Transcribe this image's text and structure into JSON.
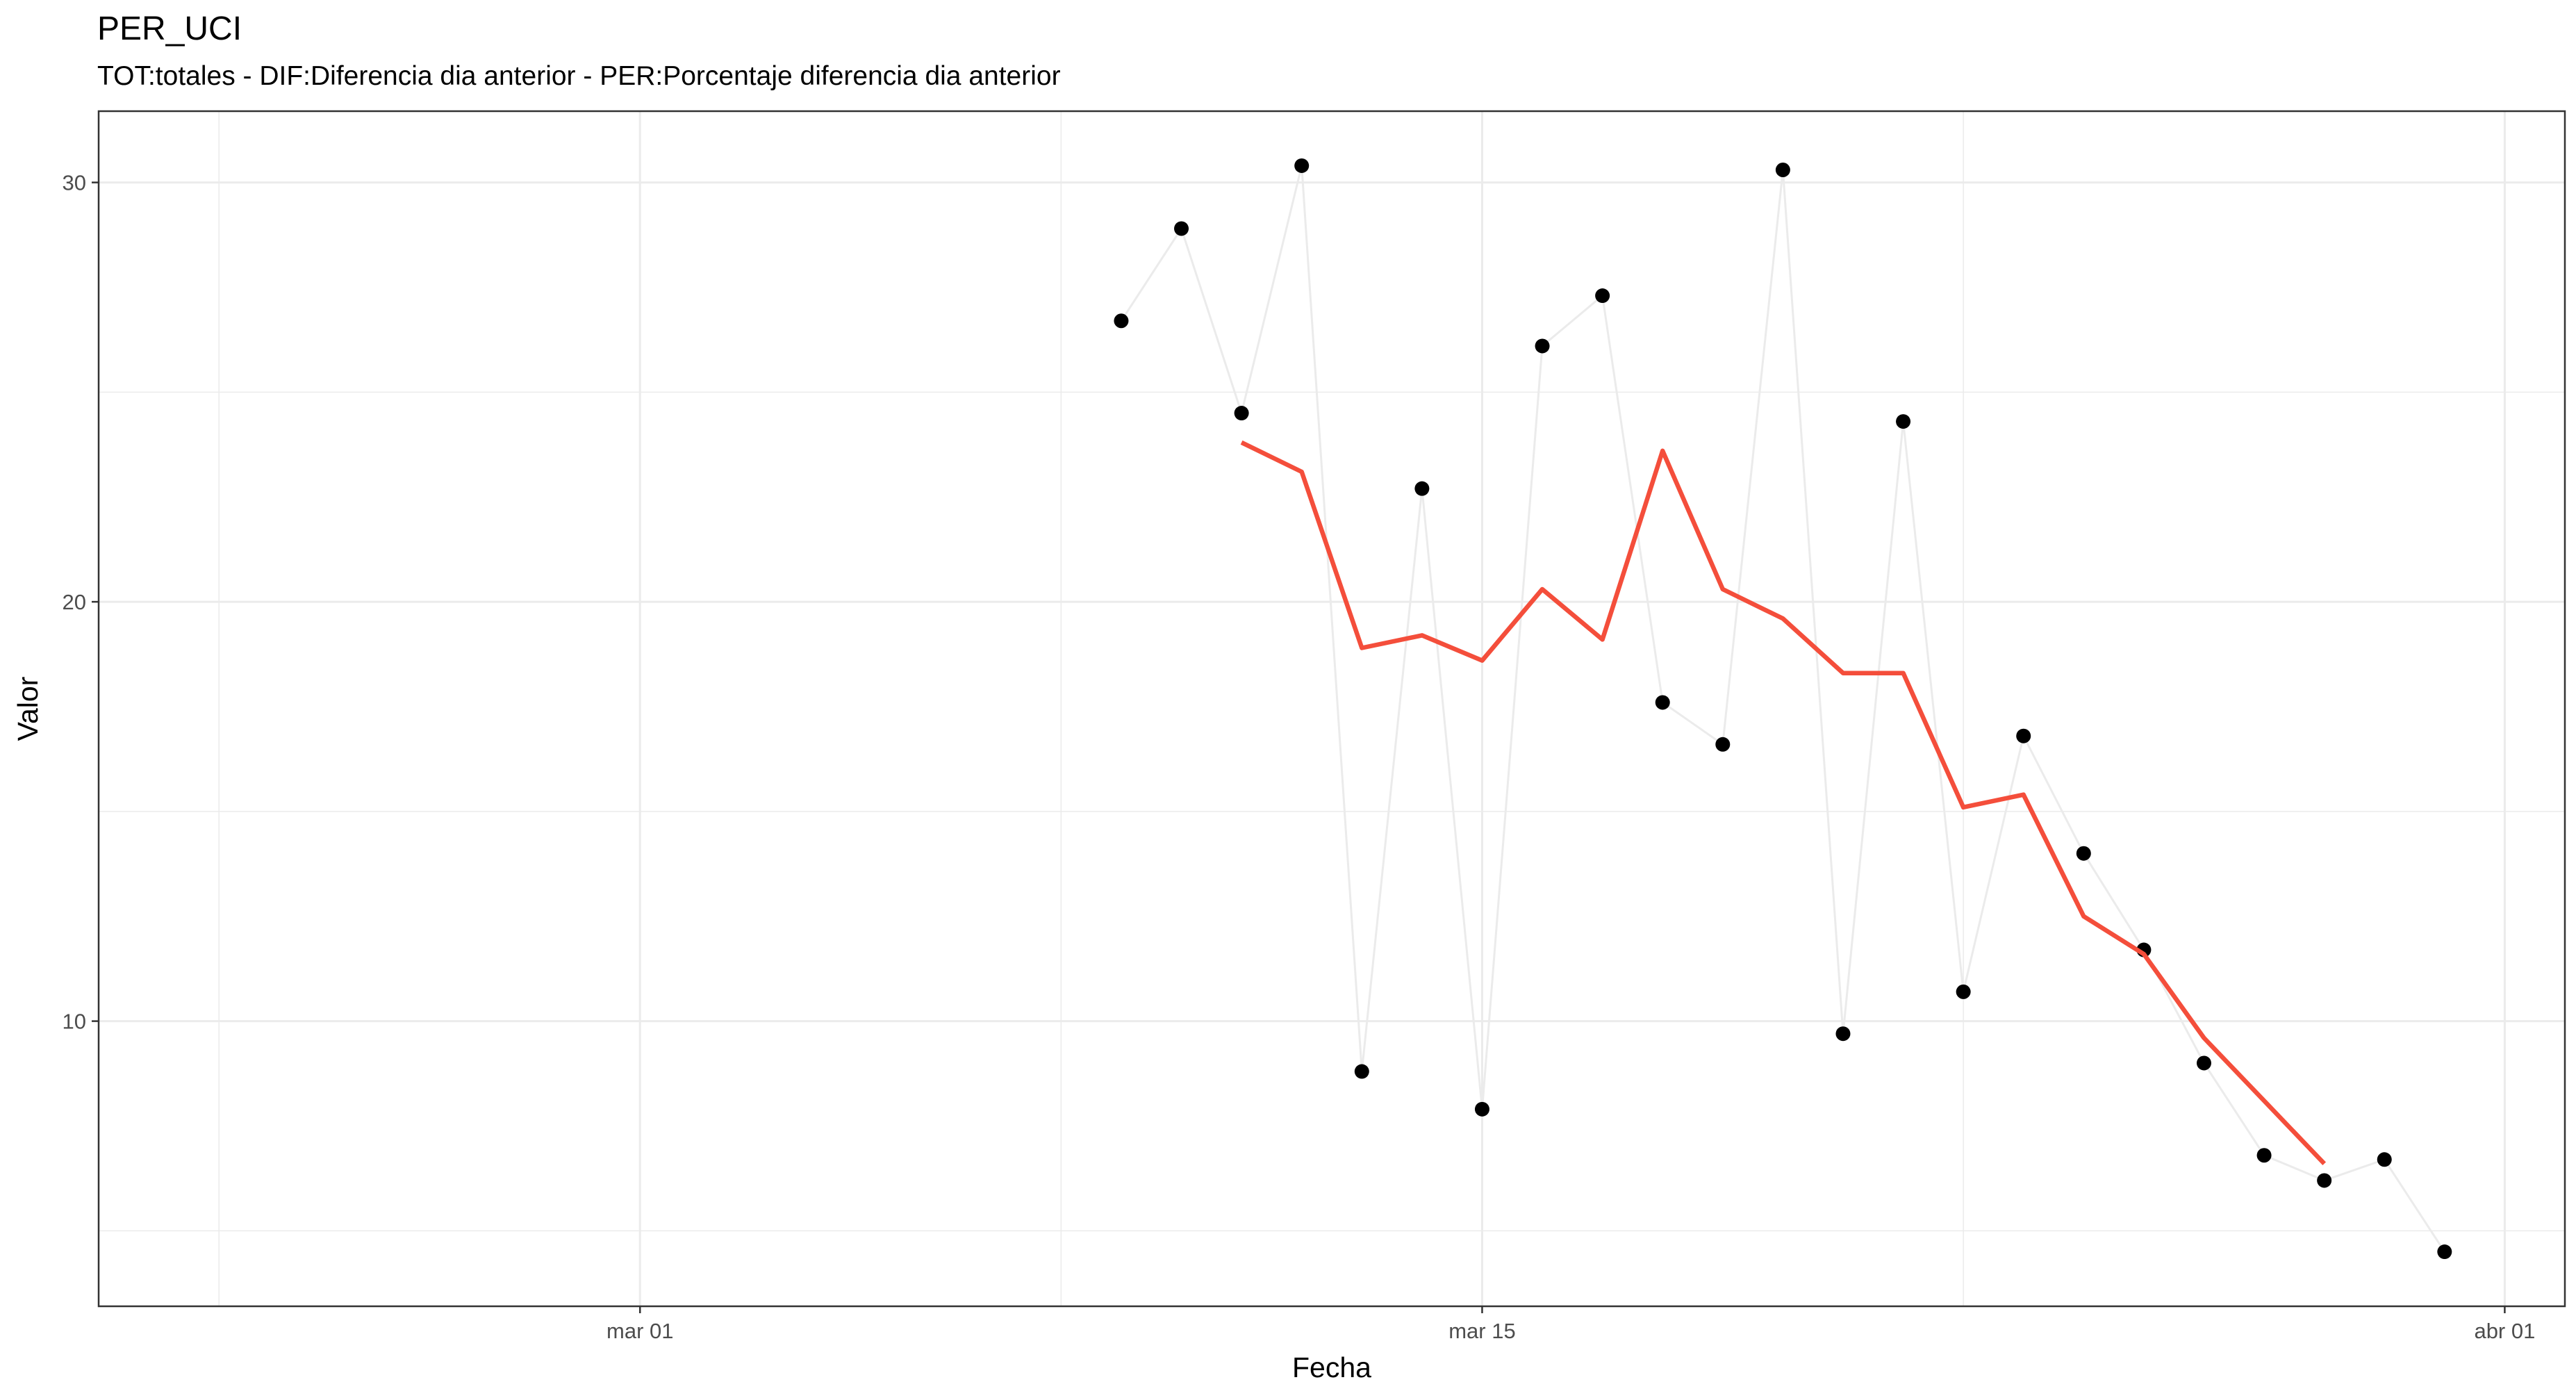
{
  "chart_data": {
    "type": "line",
    "title": "PER_UCI",
    "subtitle": "TOT:totales - DIF:Diferencia dia anterior - PER:Porcentaje diferencia dia anterior",
    "xlabel": "Fecha",
    "ylabel": "Valor",
    "xlim": [
      "2020-02-21",
      "2020-04-02"
    ],
    "ylim": [
      3.2,
      31.7
    ],
    "grid": true,
    "legend": "none",
    "x_ticks": [
      {
        "date": "2020-03-01",
        "label": "mar 01"
      },
      {
        "date": "2020-03-15",
        "label": "mar 15"
      },
      {
        "date": "2020-04-01",
        "label": "abr 01"
      }
    ],
    "x_minor_ticks": [
      "2020-02-23",
      "2020-03-08",
      "2020-03-23"
    ],
    "y_ticks": [
      10,
      20,
      30
    ],
    "y_minor_ticks": [
      5,
      15,
      25
    ],
    "series": [
      {
        "kind": "points-with-line",
        "color": "#000000",
        "line_color": "#ebebeb",
        "points": [
          {
            "x": "2020-03-09",
            "y": 26.7
          },
          {
            "x": "2020-03-10",
            "y": 28.9
          },
          {
            "x": "2020-03-11",
            "y": 24.5
          },
          {
            "x": "2020-03-12",
            "y": 30.4
          },
          {
            "x": "2020-03-13",
            "y": 8.8
          },
          {
            "x": "2020-03-14",
            "y": 22.7
          },
          {
            "x": "2020-03-15",
            "y": 7.9
          },
          {
            "x": "2020-03-16",
            "y": 26.1
          },
          {
            "x": "2020-03-17",
            "y": 27.3
          },
          {
            "x": "2020-03-18",
            "y": 17.6
          },
          {
            "x": "2020-03-19",
            "y": 16.6
          },
          {
            "x": "2020-03-20",
            "y": 30.3
          },
          {
            "x": "2020-03-21",
            "y": 9.7
          },
          {
            "x": "2020-03-22",
            "y": 24.3
          },
          {
            "x": "2020-03-23",
            "y": 10.7
          },
          {
            "x": "2020-03-24",
            "y": 16.8
          },
          {
            "x": "2020-03-25",
            "y": 14.0
          },
          {
            "x": "2020-03-26",
            "y": 11.7
          },
          {
            "x": "2020-03-27",
            "y": 9.0
          },
          {
            "x": "2020-03-28",
            "y": 6.8
          },
          {
            "x": "2020-03-29",
            "y": 6.2
          },
          {
            "x": "2020-03-30",
            "y": 6.7
          },
          {
            "x": "2020-03-31",
            "y": 4.5
          }
        ]
      },
      {
        "kind": "line",
        "color": "#f44e3b",
        "points": [
          {
            "x": "2020-03-11",
            "y": 23.8
          },
          {
            "x": "2020-03-12",
            "y": 23.1
          },
          {
            "x": "2020-03-13",
            "y": 18.9
          },
          {
            "x": "2020-03-14",
            "y": 19.2
          },
          {
            "x": "2020-03-15",
            "y": 18.6
          },
          {
            "x": "2020-03-16",
            "y": 20.3
          },
          {
            "x": "2020-03-17",
            "y": 19.1
          },
          {
            "x": "2020-03-18",
            "y": 23.6
          },
          {
            "x": "2020-03-19",
            "y": 20.3
          },
          {
            "x": "2020-03-20",
            "y": 19.6
          },
          {
            "x": "2020-03-21",
            "y": 18.3
          },
          {
            "x": "2020-03-22",
            "y": 18.3
          },
          {
            "x": "2020-03-23",
            "y": 15.1
          },
          {
            "x": "2020-03-24",
            "y": 15.4
          },
          {
            "x": "2020-03-25",
            "y": 12.5
          },
          {
            "x": "2020-03-26",
            "y": 11.6
          },
          {
            "x": "2020-03-27",
            "y": 9.6
          },
          {
            "x": "2020-03-28",
            "y": 8.1
          },
          {
            "x": "2020-03-29",
            "y": 6.6
          }
        ]
      }
    ]
  }
}
